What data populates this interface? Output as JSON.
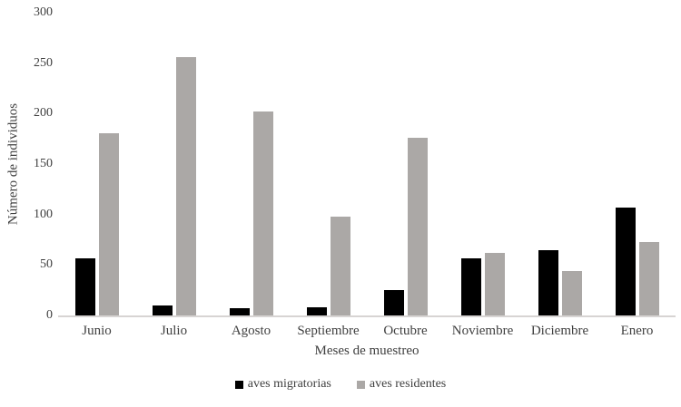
{
  "chart_data": {
    "type": "bar",
    "title": "",
    "categories": [
      "Junio",
      "Julio",
      "Agosto",
      "Septiembre",
      "Octubre",
      "Noviembre",
      "Diciembre",
      "Enero"
    ],
    "series": [
      {
        "name": "aves migratorias",
        "color": "#000000",
        "values": [
          57,
          10,
          7,
          8,
          25,
          57,
          65,
          107
        ]
      },
      {
        "name": "aves residentes",
        "color": "#aba8a6",
        "values": [
          181,
          256,
          202,
          98,
          176,
          62,
          44,
          73
        ]
      }
    ],
    "xlabel": "Meses de muestreo",
    "ylabel": "Número de individuos",
    "ylim": [
      0,
      300
    ],
    "yticks": [
      0,
      50,
      100,
      150,
      200,
      250,
      300
    ],
    "grid": false,
    "legend_position": "bottom",
    "axis_line_color": "#d7d4d3",
    "text_color": "#3f3f3f"
  }
}
